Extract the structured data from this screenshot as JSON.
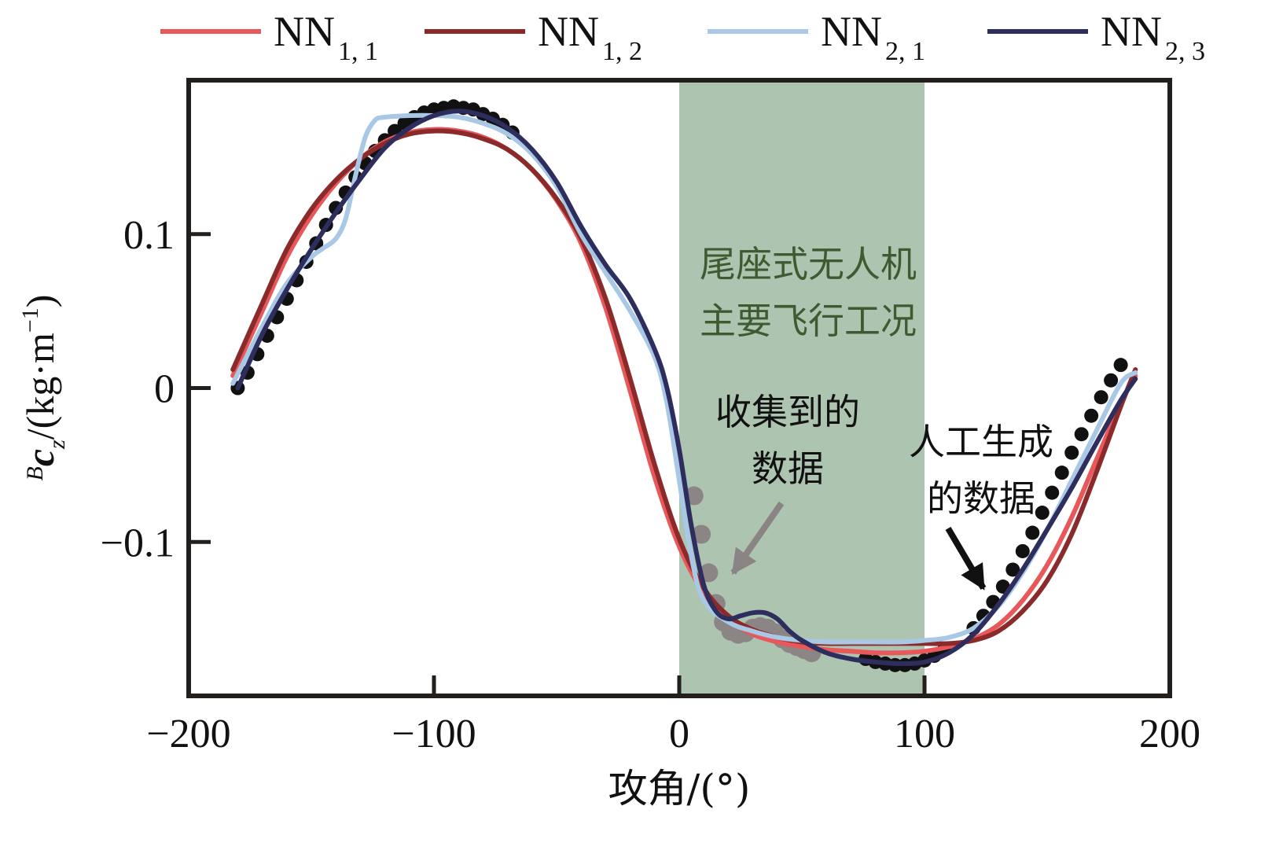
{
  "chart_data": {
    "type": "line",
    "title": "",
    "xlabel": "攻角/(°)",
    "ylabel": {
      "prefix": "B",
      "symbol": "c",
      "subscript": "z",
      "unit": "/(kg·m",
      "unit_exp": "−1",
      "unit_close": ")"
    },
    "xlim": [
      -200,
      200
    ],
    "ylim": [
      -0.2,
      0.2
    ],
    "x_ticks": [
      -200,
      -100,
      0,
      100,
      200
    ],
    "x_tick_labels": [
      "−200",
      "−100",
      "0",
      "100",
      "200"
    ],
    "y_ticks": [
      0.1,
      0,
      -0.1
    ],
    "y_tick_labels": [
      "0.1",
      "0",
      "−0.1"
    ],
    "grid": false,
    "legend_position": "top",
    "shaded_region": {
      "x_range": [
        0,
        100
      ],
      "color": "#acc4b0",
      "label_lines": [
        "尾座式无人机",
        "主要飞行工况"
      ],
      "label_color": "#3d5a30"
    },
    "annotations": [
      {
        "lines": [
          "收集到的",
          "数据"
        ],
        "color": "#111111",
        "arrow_color": "#8a8484",
        "arrow_to": [
          22,
          -0.12
        ]
      },
      {
        "lines": [
          "人工生成",
          "的数据"
        ],
        "color": "#111111",
        "arrow_color": "#111111",
        "arrow_to": [
          124,
          -0.13
        ]
      }
    ],
    "scatter_series": [
      {
        "name": "人工生成的数据",
        "color": "#111111",
        "x": [
          -180,
          -176,
          -172,
          -168,
          -164,
          -160,
          -156,
          -152,
          -148,
          -144,
          -140,
          -136,
          -132,
          -128,
          -124,
          -120,
          -116,
          -112,
          -108,
          -104,
          -100,
          -96,
          -92,
          -88,
          -84,
          -80,
          -76,
          -72,
          -68,
          76,
          80,
          84,
          88,
          92,
          96,
          100,
          104,
          108,
          120,
          124,
          128,
          132,
          136,
          140,
          144,
          148,
          152,
          156,
          160,
          164,
          168,
          172,
          176,
          180
        ],
        "y": [
          0,
          0.01,
          0.022,
          0.034,
          0.046,
          0.058,
          0.07,
          0.082,
          0.094,
          0.106,
          0.117,
          0.127,
          0.137,
          0.146,
          0.154,
          0.161,
          0.167,
          0.172,
          0.176,
          0.179,
          0.181,
          0.182,
          0.183,
          0.182,
          0.181,
          0.178,
          0.175,
          0.171,
          0.166,
          -0.176,
          -0.178,
          -0.179,
          -0.18,
          -0.18,
          -0.179,
          -0.177,
          -0.174,
          -0.17,
          -0.156,
          -0.148,
          -0.139,
          -0.129,
          -0.118,
          -0.106,
          -0.094,
          -0.081,
          -0.068,
          -0.055,
          -0.042,
          -0.03,
          -0.018,
          -0.006,
          0.005,
          0.015
        ]
      },
      {
        "name": "收集到的数据",
        "color": "#8c8585",
        "x": [
          6,
          9,
          12,
          15,
          18,
          21,
          24,
          27,
          30,
          33,
          36,
          39,
          42,
          45,
          48,
          51,
          54
        ],
        "y": [
          -0.07,
          -0.095,
          -0.12,
          -0.14,
          -0.152,
          -0.158,
          -0.16,
          -0.159,
          -0.156,
          -0.155,
          -0.156,
          -0.159,
          -0.163,
          -0.166,
          -0.168,
          -0.17,
          -0.172
        ]
      }
    ],
    "series": [
      {
        "name": "NN",
        "sub": "1, 1",
        "color": "#e8585a",
        "x": [
          -182,
          -170,
          -160,
          -150,
          -140,
          -130,
          -120,
          -110,
          -100,
          -90,
          -80,
          -70,
          -60,
          -50,
          -40,
          -30,
          -20,
          -10,
          0,
          10,
          20,
          30,
          40,
          50,
          60,
          70,
          80,
          90,
          100,
          110,
          120,
          130,
          140,
          150,
          160,
          170,
          180,
          186
        ],
        "y": [
          0.008,
          0.05,
          0.085,
          0.112,
          0.133,
          0.149,
          0.16,
          0.166,
          0.168,
          0.167,
          0.163,
          0.155,
          0.142,
          0.122,
          0.094,
          0.052,
          -0.002,
          -0.058,
          -0.103,
          -0.133,
          -0.15,
          -0.16,
          -0.165,
          -0.168,
          -0.17,
          -0.171,
          -0.172,
          -0.172,
          -0.171,
          -0.168,
          -0.163,
          -0.154,
          -0.138,
          -0.115,
          -0.084,
          -0.047,
          -0.01,
          0.008
        ]
      },
      {
        "name": "NN",
        "sub": "1, 2",
        "color": "#8b2a2a",
        "x": [
          -182,
          -170,
          -160,
          -150,
          -140,
          -130,
          -120,
          -110,
          -100,
          -90,
          -80,
          -70,
          -60,
          -50,
          -40,
          -30,
          -20,
          -10,
          0,
          10,
          20,
          30,
          40,
          50,
          60,
          70,
          80,
          90,
          100,
          110,
          120,
          130,
          140,
          150,
          160,
          170,
          180,
          186
        ],
        "y": [
          0.012,
          0.055,
          0.09,
          0.116,
          0.135,
          0.149,
          0.159,
          0.165,
          0.167,
          0.166,
          0.162,
          0.155,
          0.142,
          0.123,
          0.097,
          0.058,
          0.006,
          -0.05,
          -0.098,
          -0.13,
          -0.148,
          -0.157,
          -0.162,
          -0.165,
          -0.166,
          -0.166,
          -0.166,
          -0.166,
          -0.166,
          -0.166,
          -0.164,
          -0.158,
          -0.145,
          -0.125,
          -0.095,
          -0.055,
          -0.012,
          0.012
        ]
      },
      {
        "name": "NN",
        "sub": "2, 1",
        "color": "#a8c8e6",
        "x": [
          -182,
          -170,
          -160,
          -150,
          -145,
          -140,
          -136,
          -132,
          -128,
          -124,
          -120,
          -110,
          -100,
          -90,
          -80,
          -70,
          -60,
          -50,
          -40,
          -30,
          -20,
          -10,
          -5,
          0,
          5,
          10,
          20,
          30,
          40,
          50,
          60,
          70,
          80,
          90,
          100,
          110,
          120,
          130,
          140,
          150,
          160,
          170,
          180,
          186
        ],
        "y": [
          0.003,
          0.04,
          0.068,
          0.085,
          0.091,
          0.097,
          0.11,
          0.138,
          0.163,
          0.174,
          0.176,
          0.177,
          0.177,
          0.176,
          0.172,
          0.165,
          0.152,
          0.131,
          0.1,
          0.075,
          0.05,
          0.02,
          -0.01,
          -0.06,
          -0.11,
          -0.138,
          -0.152,
          -0.158,
          -0.162,
          -0.164,
          -0.165,
          -0.165,
          -0.165,
          -0.165,
          -0.164,
          -0.162,
          -0.156,
          -0.142,
          -0.12,
          -0.092,
          -0.06,
          -0.028,
          0.003,
          0.01
        ]
      },
      {
        "name": "NN",
        "sub": "2, 3",
        "color": "#2e2e5e",
        "x": [
          -180,
          -170,
          -160,
          -150,
          -140,
          -130,
          -120,
          -110,
          -100,
          -90,
          -80,
          -70,
          -60,
          -50,
          -40,
          -30,
          -20,
          -10,
          -5,
          0,
          5,
          10,
          15,
          20,
          25,
          30,
          35,
          40,
          45,
          50,
          60,
          70,
          80,
          90,
          100,
          110,
          120,
          130,
          140,
          150,
          160,
          170,
          180,
          186
        ],
        "y": [
          0,
          0.035,
          0.064,
          0.09,
          0.114,
          0.136,
          0.156,
          0.169,
          0.177,
          0.18,
          0.177,
          0.169,
          0.155,
          0.134,
          0.105,
          0.08,
          0.058,
          0.025,
          0.0,
          -0.04,
          -0.09,
          -0.128,
          -0.145,
          -0.15,
          -0.148,
          -0.146,
          -0.146,
          -0.15,
          -0.158,
          -0.164,
          -0.172,
          -0.176,
          -0.178,
          -0.179,
          -0.178,
          -0.172,
          -0.16,
          -0.141,
          -0.118,
          -0.092,
          -0.065,
          -0.036,
          -0.008,
          0.006
        ]
      }
    ]
  }
}
